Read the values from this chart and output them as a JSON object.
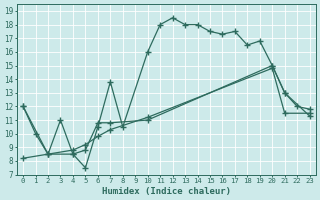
{
  "line1_x": [
    0,
    1,
    2,
    3,
    4,
    5,
    6,
    7,
    8,
    10,
    11,
    12,
    13,
    14,
    15,
    16,
    17,
    18,
    19,
    20,
    21,
    22,
    23
  ],
  "line1_y": [
    12,
    10,
    8.5,
    11,
    8.5,
    7.5,
    10.5,
    13.8,
    10.5,
    16.0,
    18.0,
    18.5,
    18.0,
    18.0,
    17.5,
    17.3,
    17.5,
    16.5,
    16.8,
    15.0,
    13.0,
    12.0,
    11.8
  ],
  "line2_x": [
    0,
    2,
    4,
    5,
    6,
    7,
    10,
    20,
    21,
    23
  ],
  "line2_y": [
    12,
    8.5,
    8.5,
    8.8,
    10.8,
    10.8,
    11.0,
    15.0,
    13.0,
    11.3
  ],
  "line3_x": [
    0,
    2,
    4,
    5,
    6,
    7,
    10,
    20,
    21,
    23
  ],
  "line3_y": [
    8.2,
    8.5,
    8.8,
    9.2,
    9.8,
    10.3,
    11.2,
    14.8,
    11.5,
    11.5
  ],
  "color": "#2e6b5e",
  "bg_color": "#cdeaea",
  "grid_color": "#b0d8d8",
  "xlabel": "Humidex (Indice chaleur)",
  "xlim": [
    -0.5,
    23.5
  ],
  "ylim": [
    7,
    19.5
  ],
  "yticks": [
    7,
    8,
    9,
    10,
    11,
    12,
    13,
    14,
    15,
    16,
    17,
    18,
    19
  ],
  "xticks": [
    0,
    1,
    2,
    3,
    4,
    5,
    6,
    7,
    8,
    9,
    10,
    11,
    12,
    13,
    14,
    15,
    16,
    17,
    18,
    19,
    20,
    21,
    22,
    23
  ],
  "figsize": [
    3.2,
    2.0
  ],
  "dpi": 100
}
